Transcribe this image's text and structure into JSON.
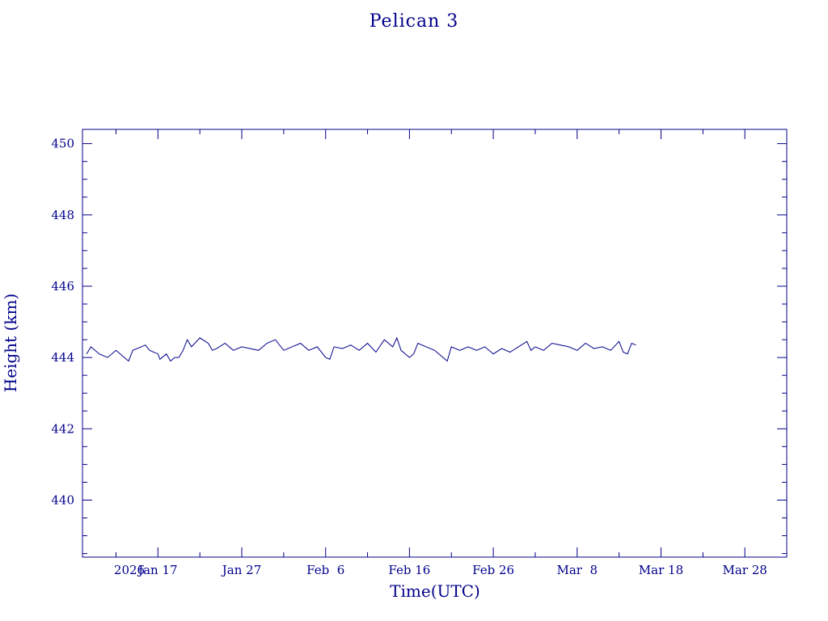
{
  "chart_data": {
    "type": "line",
    "title": "Pelican 3",
    "xlabel": "Time(UTC)",
    "ylabel": "Height (km)",
    "x_axis": {
      "type": "date",
      "min": "2026-01-08",
      "max": "2026-04-02",
      "tick_labels": [
        {
          "date": "2026-01-17",
          "label": "Jan 17"
        },
        {
          "date": "2026-01-27",
          "label": "Jan 27"
        },
        {
          "date": "2026-02-06",
          "label": "Feb  6"
        },
        {
          "date": "2026-02-16",
          "label": "Feb 16"
        },
        {
          "date": "2026-02-26",
          "label": "Feb 26"
        },
        {
          "date": "2026-03-08",
          "label": "Mar  8"
        },
        {
          "date": "2026-03-18",
          "label": "Mar 18"
        },
        {
          "date": "2026-03-28",
          "label": "Mar 28"
        }
      ],
      "year_label": "2026"
    },
    "y_axis": {
      "min": 438.4,
      "max": 450.4,
      "major_ticks": [
        440,
        442,
        444,
        446,
        448,
        450
      ],
      "minor_step": 0.5
    },
    "grid": false,
    "series": [
      {
        "color": "#00008b",
        "x": [
          "2026-01-08T12:00",
          "2026-01-09",
          "2026-01-10",
          "2026-01-10T12:00",
          "2026-01-11",
          "2026-01-12",
          "2026-01-13",
          "2026-01-13T12:00",
          "2026-01-14",
          "2026-01-15",
          "2026-01-15T12:00",
          "2026-01-16",
          "2026-01-17",
          "2026-01-17T06:00",
          "2026-01-18",
          "2026-01-18T12:00",
          "2026-01-19",
          "2026-01-19T12:00",
          "2026-01-20",
          "2026-01-20T12:00",
          "2026-01-21",
          "2026-01-22",
          "2026-01-23",
          "2026-01-23T12:00",
          "2026-01-24",
          "2026-01-25",
          "2026-01-26",
          "2026-01-27",
          "2026-01-28",
          "2026-01-29",
          "2026-01-30",
          "2026-01-31",
          "2026-02-01",
          "2026-02-02",
          "2026-02-03",
          "2026-02-04",
          "2026-02-05",
          "2026-02-06",
          "2026-02-06T12:00",
          "2026-02-07",
          "2026-02-08",
          "2026-02-09",
          "2026-02-10",
          "2026-02-11",
          "2026-02-12",
          "2026-02-13",
          "2026-02-14",
          "2026-02-14T12:00",
          "2026-02-15",
          "2026-02-16",
          "2026-02-16T12:00",
          "2026-02-17",
          "2026-02-18",
          "2026-02-19",
          "2026-02-20",
          "2026-02-20T12:00",
          "2026-02-21",
          "2026-02-22",
          "2026-02-23",
          "2026-02-24",
          "2026-02-25",
          "2026-02-26",
          "2026-02-27",
          "2026-02-28",
          "2026-03-01",
          "2026-03-02",
          "2026-03-02T12:00",
          "2026-03-03",
          "2026-03-04",
          "2026-03-05",
          "2026-03-06",
          "2026-03-07",
          "2026-03-08",
          "2026-03-09",
          "2026-03-10",
          "2026-03-11",
          "2026-03-12",
          "2026-03-13",
          "2026-03-13T12:00",
          "2026-03-14",
          "2026-03-14T12:00",
          "2026-03-15"
        ],
        "y": [
          444.1,
          444.3,
          444.1,
          444.05,
          444.0,
          444.2,
          444.0,
          443.9,
          444.2,
          444.3,
          444.35,
          444.2,
          444.1,
          443.95,
          444.1,
          443.9,
          444.0,
          444.0,
          444.2,
          444.5,
          444.3,
          444.55,
          444.4,
          444.2,
          444.25,
          444.4,
          444.2,
          444.3,
          444.25,
          444.2,
          444.4,
          444.5,
          444.2,
          444.3,
          444.4,
          444.2,
          444.3,
          444.0,
          443.95,
          444.3,
          444.25,
          444.35,
          444.2,
          444.4,
          444.15,
          444.5,
          444.3,
          444.55,
          444.2,
          444.0,
          444.1,
          444.4,
          444.3,
          444.2,
          444.0,
          443.9,
          444.3,
          444.2,
          444.3,
          444.2,
          444.3,
          444.1,
          444.25,
          444.15,
          444.3,
          444.45,
          444.2,
          444.3,
          444.2,
          444.4,
          444.35,
          444.3,
          444.2,
          444.4,
          444.25,
          444.3,
          444.2,
          444.45,
          444.15,
          444.1,
          444.4,
          444.35
        ]
      }
    ]
  }
}
